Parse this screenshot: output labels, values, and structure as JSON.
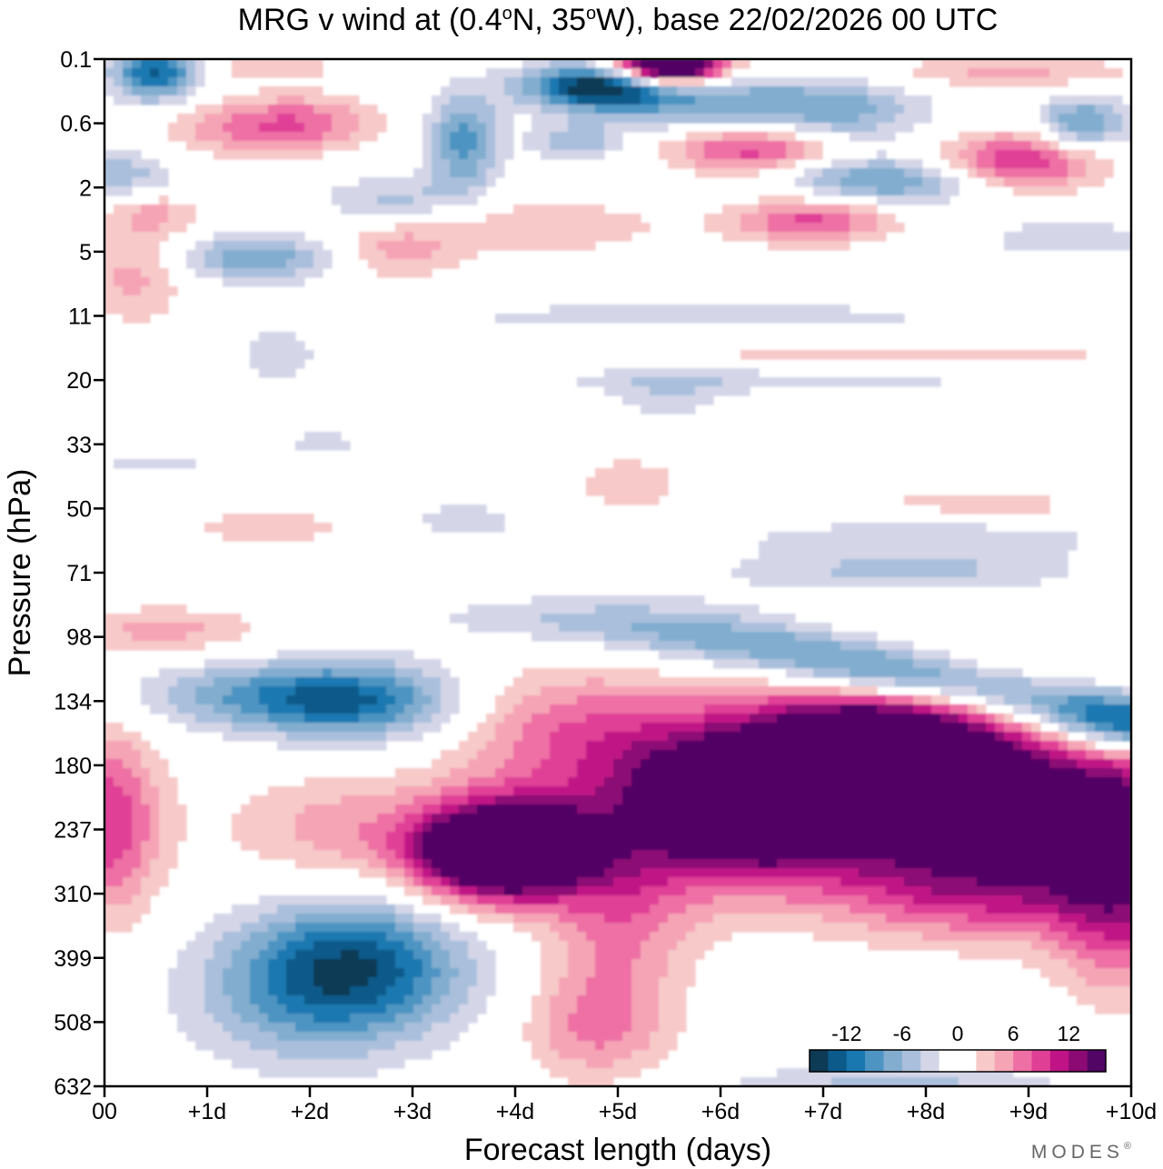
{
  "chart_data": {
    "type": "heatmap",
    "title": "MRG v wind at (0.4°N, 35°W),  base 22/02/2026  00 UTC",
    "title_parts": {
      "prefix": "MRG v wind at (0.4",
      "lat_hemisphere": "N, 35",
      "lon_hemisphere": "W),  base 22/02/2026  00 UTC",
      "degree_symbol": "o"
    },
    "xlabel": "Forecast length (days)",
    "ylabel": "Pressure (hPa)",
    "x_ticks": [
      "00",
      "+1d",
      "+2d",
      "+3d",
      "+4d",
      "+5d",
      "+6d",
      "+7d",
      "+8d",
      "+9d",
      "+10d"
    ],
    "x_range_days": [
      0,
      10
    ],
    "y_ticks": [
      "0.1",
      "0.6",
      "2",
      "5",
      "11",
      "20",
      "33",
      "50",
      "71",
      "98",
      "134",
      "180",
      "237",
      "310",
      "399",
      "508",
      "632"
    ],
    "y_range_hPa": [
      0.1,
      632
    ],
    "colorbar": {
      "tick_labels": [
        "-12",
        "-6",
        "0",
        "6",
        "12"
      ],
      "tick_values": [
        -12,
        -6,
        0,
        6,
        12
      ],
      "range": [
        -16,
        16
      ],
      "step": 2,
      "colors": [
        "#0d3a55",
        "#0b5a8a",
        "#1a78b0",
        "#4e94c2",
        "#82adcf",
        "#aabfdb",
        "#d4d6e8",
        "#ffffff",
        "#ffffff",
        "#f7c9c9",
        "#f5a4b5",
        "#ee6fa4",
        "#e03f96",
        "#c01385",
        "#8b0a74",
        "#520565"
      ]
    },
    "features": [
      {
        "name": "strong-positive-core-upper-troposphere",
        "sign": "positive",
        "days": [
          6.3,
          8.7
        ],
        "pressure_hPa": [
          134,
          260
        ],
        "max_ms": 16
      },
      {
        "name": "positive-core-mid",
        "sign": "positive",
        "days": [
          3.0,
          4.5
        ],
        "pressure_hPa": [
          200,
          280
        ],
        "max_ms": 16
      },
      {
        "name": "negative-band-near-100hPa",
        "sign": "negative",
        "days": [
          5.5,
          10
        ],
        "pressure_hPa": [
          90,
          134
        ],
        "min_ms": -14
      },
      {
        "name": "negative-blob-130hPa",
        "sign": "negative",
        "days": [
          1.0,
          3.5
        ],
        "pressure_hPa": [
          110,
          160
        ],
        "min_ms": -10
      },
      {
        "name": "negative-blob-lower",
        "sign": "negative",
        "days": [
          1.0,
          3.7
        ],
        "pressure_hPa": [
          320,
          600
        ],
        "min_ms": -10
      },
      {
        "name": "stratospheric-upper-features",
        "sign": "mixed",
        "days": [
          0,
          10
        ],
        "pressure_hPa": [
          0.1,
          10
        ],
        "extreme_ms": 16
      }
    ]
  },
  "branding": {
    "text": "MODES",
    "mark": "®"
  }
}
